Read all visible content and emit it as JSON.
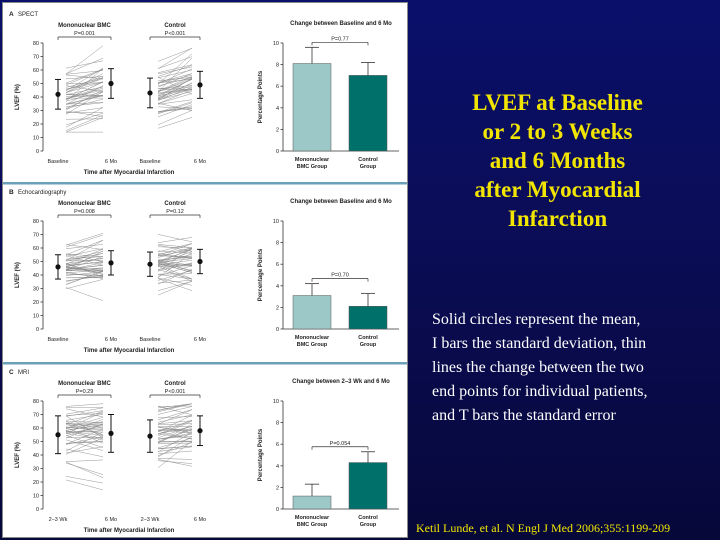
{
  "slide": {
    "title_lines": [
      "LVEF at Baseline",
      "or 2 to 3 Weeks",
      "and 6 Months",
      "after Myocardial",
      "Infarction"
    ],
    "note_lines": [
      "Solid circles represent the mean,",
      "I bars the standard deviation, thin",
      "lines the change between the two",
      "end points for individual patients,",
      "and T bars the standard error"
    ],
    "citation": "Ketil Lunde, et al. N Engl J Med 2006;355:1199-209"
  },
  "colors": {
    "bmc_bar": "#9dc8c8",
    "control_bar": "#00706a",
    "slide_title": "#f2e600",
    "background": "#0a0f6a"
  },
  "chart_data": [
    {
      "panel_letter": "A",
      "panel_name": "SPECT",
      "type": "line",
      "ylabel": "LVEF (%)",
      "xlabel": "Time after Myocardial Infarction",
      "ylim": [
        0,
        80
      ],
      "yticks": [
        0,
        10,
        20,
        30,
        40,
        50,
        60,
        70,
        80
      ],
      "x_tick_labels": [
        "Baseline",
        "6 Mo",
        "Baseline",
        "6 Mo"
      ],
      "groups": [
        {
          "name": "Mononuclear BMC",
          "p_value": "P=0.001",
          "mean": [
            42,
            50
          ],
          "sd": [
            11,
            11
          ]
        },
        {
          "name": "Control",
          "p_value": "P<0.001",
          "mean": [
            43,
            49
          ],
          "sd": [
            11,
            10
          ]
        }
      ],
      "change_chart": {
        "type": "bar",
        "title": "Change between Baseline and 6 Mo",
        "ylabel": "Percentage Points",
        "ylim": [
          0,
          10
        ],
        "yticks": [
          0,
          2,
          4,
          6,
          8,
          10
        ],
        "categories": [
          "Mononuclear BMC Group",
          "Control Group"
        ],
        "values": [
          8.1,
          7.0
        ],
        "se": [
          1.5,
          1.2
        ],
        "p_value": "P=0.77"
      }
    },
    {
      "panel_letter": "B",
      "panel_name": "Echocardiography",
      "type": "line",
      "ylabel": "LVEF (%)",
      "xlabel": "Time after Myocardial Infarction",
      "ylim": [
        0,
        80
      ],
      "yticks": [
        0,
        10,
        20,
        30,
        40,
        50,
        60,
        70,
        80
      ],
      "x_tick_labels": [
        "Baseline",
        "6 Mo",
        "Baseline",
        "6 Mo"
      ],
      "groups": [
        {
          "name": "Mononuclear BMC",
          "p_value": "P=0.008",
          "mean": [
            46,
            49
          ],
          "sd": [
            9,
            9
          ]
        },
        {
          "name": "Control",
          "p_value": "P=0.12",
          "mean": [
            48,
            50
          ],
          "sd": [
            9,
            9
          ]
        }
      ],
      "change_chart": {
        "type": "bar",
        "title": "Change between Baseline and 6 Mo",
        "ylabel": "Percentage Points",
        "ylim": [
          0,
          10
        ],
        "yticks": [
          0,
          2,
          4,
          6,
          8,
          10
        ],
        "categories": [
          "Mononuclear BMC Group",
          "Control Group"
        ],
        "values": [
          3.1,
          2.1
        ],
        "se": [
          1.1,
          1.2
        ],
        "p_value": "P=0.70"
      }
    },
    {
      "panel_letter": "C",
      "panel_name": "MRI",
      "type": "line",
      "ylabel": "LVEF (%)",
      "xlabel": "Time after Myocardial Infarction",
      "ylim": [
        0,
        80
      ],
      "yticks": [
        0,
        10,
        20,
        30,
        40,
        50,
        60,
        70,
        80
      ],
      "x_tick_labels": [
        "2–3 Wk",
        "6 Mo",
        "2–3 Wk",
        "6 Mo"
      ],
      "groups": [
        {
          "name": "Mononuclear BMC",
          "p_value": "P=0.29",
          "mean": [
            55,
            56
          ],
          "sd": [
            14,
            14
          ]
        },
        {
          "name": "Control",
          "p_value": "P<0.001",
          "mean": [
            54,
            58
          ],
          "sd": [
            12,
            11
          ]
        }
      ],
      "change_chart": {
        "type": "bar",
        "title": "Change between 2–3 Wk and 6 Mo",
        "ylabel": "Percentage Points",
        "ylim": [
          0,
          10
        ],
        "yticks": [
          0,
          2,
          4,
          6,
          8,
          10
        ],
        "categories": [
          "Mononuclear BMC Group",
          "Control Group"
        ],
        "values": [
          1.2,
          4.3
        ],
        "se": [
          1.1,
          1.0
        ],
        "p_value": "P=0.054"
      }
    }
  ]
}
